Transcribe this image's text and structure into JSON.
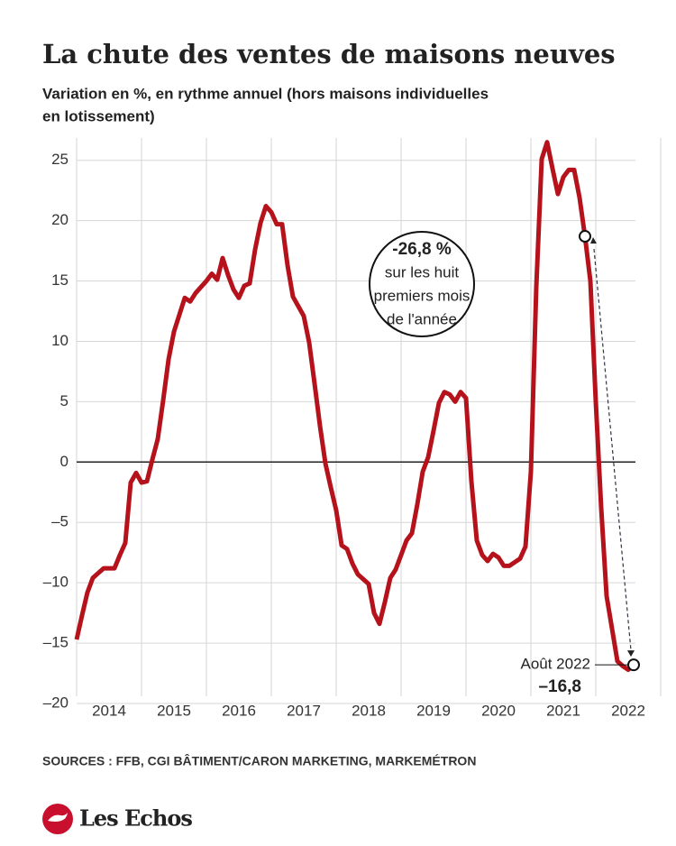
{
  "chart_data": {
    "type": "line",
    "title": "La chute des ventes de maisons neuves",
    "subtitle": [
      "Variation en %, en rythme annuel (hors maisons individuelles",
      "en lotissement)"
    ],
    "categories": [
      null,
      null,
      null,
      null,
      null,
      "2014",
      null,
      null,
      null,
      null,
      null,
      null,
      null,
      null,
      null,
      null,
      null,
      "2015",
      null,
      null,
      null,
      null,
      null,
      null,
      null,
      null,
      null,
      null,
      null,
      "2016",
      null,
      null,
      null,
      null,
      null,
      null,
      null,
      null,
      null,
      null,
      null,
      "2017",
      null,
      null,
      null,
      null,
      null,
      null,
      null,
      null,
      null,
      null,
      null,
      "2018",
      null,
      null,
      null,
      null,
      null,
      null,
      null,
      null,
      null,
      null,
      null,
      "2019",
      null,
      null,
      null,
      null,
      null,
      null,
      null,
      null,
      null,
      null,
      null,
      "2020",
      null,
      null,
      null,
      null,
      null,
      null,
      null,
      null,
      null,
      null,
      null,
      "2021",
      null,
      null,
      null,
      null,
      null,
      null,
      null,
      null,
      null,
      null,
      null,
      "2022",
      null,
      null
    ],
    "series": [
      {
        "name": "Variation",
        "color": "#b5121b",
        "values": [
          -14.7,
          -12.7,
          -10.8,
          -9.6,
          -9.2,
          -8.8,
          -8.8,
          -8.8,
          -7.7,
          -6.7,
          -1.7,
          -0.9,
          -1.7,
          -1.6,
          0.2,
          1.9,
          5.1,
          8.5,
          10.8,
          12.2,
          13.6,
          13.3,
          14.0,
          14.5,
          15.0,
          15.6,
          15.1,
          16.9,
          15.5,
          14.3,
          13.6,
          14.6,
          14.8,
          17.6,
          19.8,
          21.2,
          20.7,
          19.7,
          19.7,
          16.3,
          13.7,
          12.9,
          12.1,
          9.9,
          6.5,
          3.0,
          -0.1,
          -2.1,
          -4.0,
          -6.9,
          -7.2,
          -8.4,
          -9.3,
          -9.7,
          -10.1,
          -12.5,
          -13.4,
          -11.6,
          -9.6,
          -8.9,
          -7.7,
          -6.5,
          -5.9,
          -3.5,
          -0.8,
          0.4,
          2.6,
          4.9,
          5.8,
          5.6,
          5.0,
          5.8,
          5.3,
          -1.6,
          -6.5,
          -7.7,
          -8.2,
          -7.6,
          -7.9,
          -8.6,
          -8.6,
          -8.3,
          -8.0,
          -7.0,
          -0.8,
          14.5,
          25.1,
          26.5,
          24.3,
          22.2,
          23.6,
          24.2,
          24.2,
          21.9,
          18.7,
          15.0,
          5.0,
          -3.8,
          -11.1,
          -13.8,
          -16.5,
          -16.9,
          -17.2,
          -16.8
        ]
      }
    ],
    "ylim": [
      -20,
      25.5
    ],
    "yticks": [
      {
        "value": -20,
        "label": "–20"
      },
      {
        "value": -15,
        "label": "–15"
      },
      {
        "value": -10,
        "label": "–10"
      },
      {
        "value": -5,
        "label": "–5"
      },
      0,
      5,
      10,
      15,
      20,
      25
    ],
    "grid": true,
    "callout": {
      "headline": "-26,8 %",
      "lines": [
        "sur les huit",
        "premiers mois",
        "de l'année"
      ]
    },
    "end_annotation": {
      "label": "Août 2022",
      "value_label": "–16,8"
    },
    "source": "SOURCES : FFB, CGI BÂTIMENT/CARON MARKETING, MARKEMÉTRON",
    "brand": "Les Echos"
  }
}
